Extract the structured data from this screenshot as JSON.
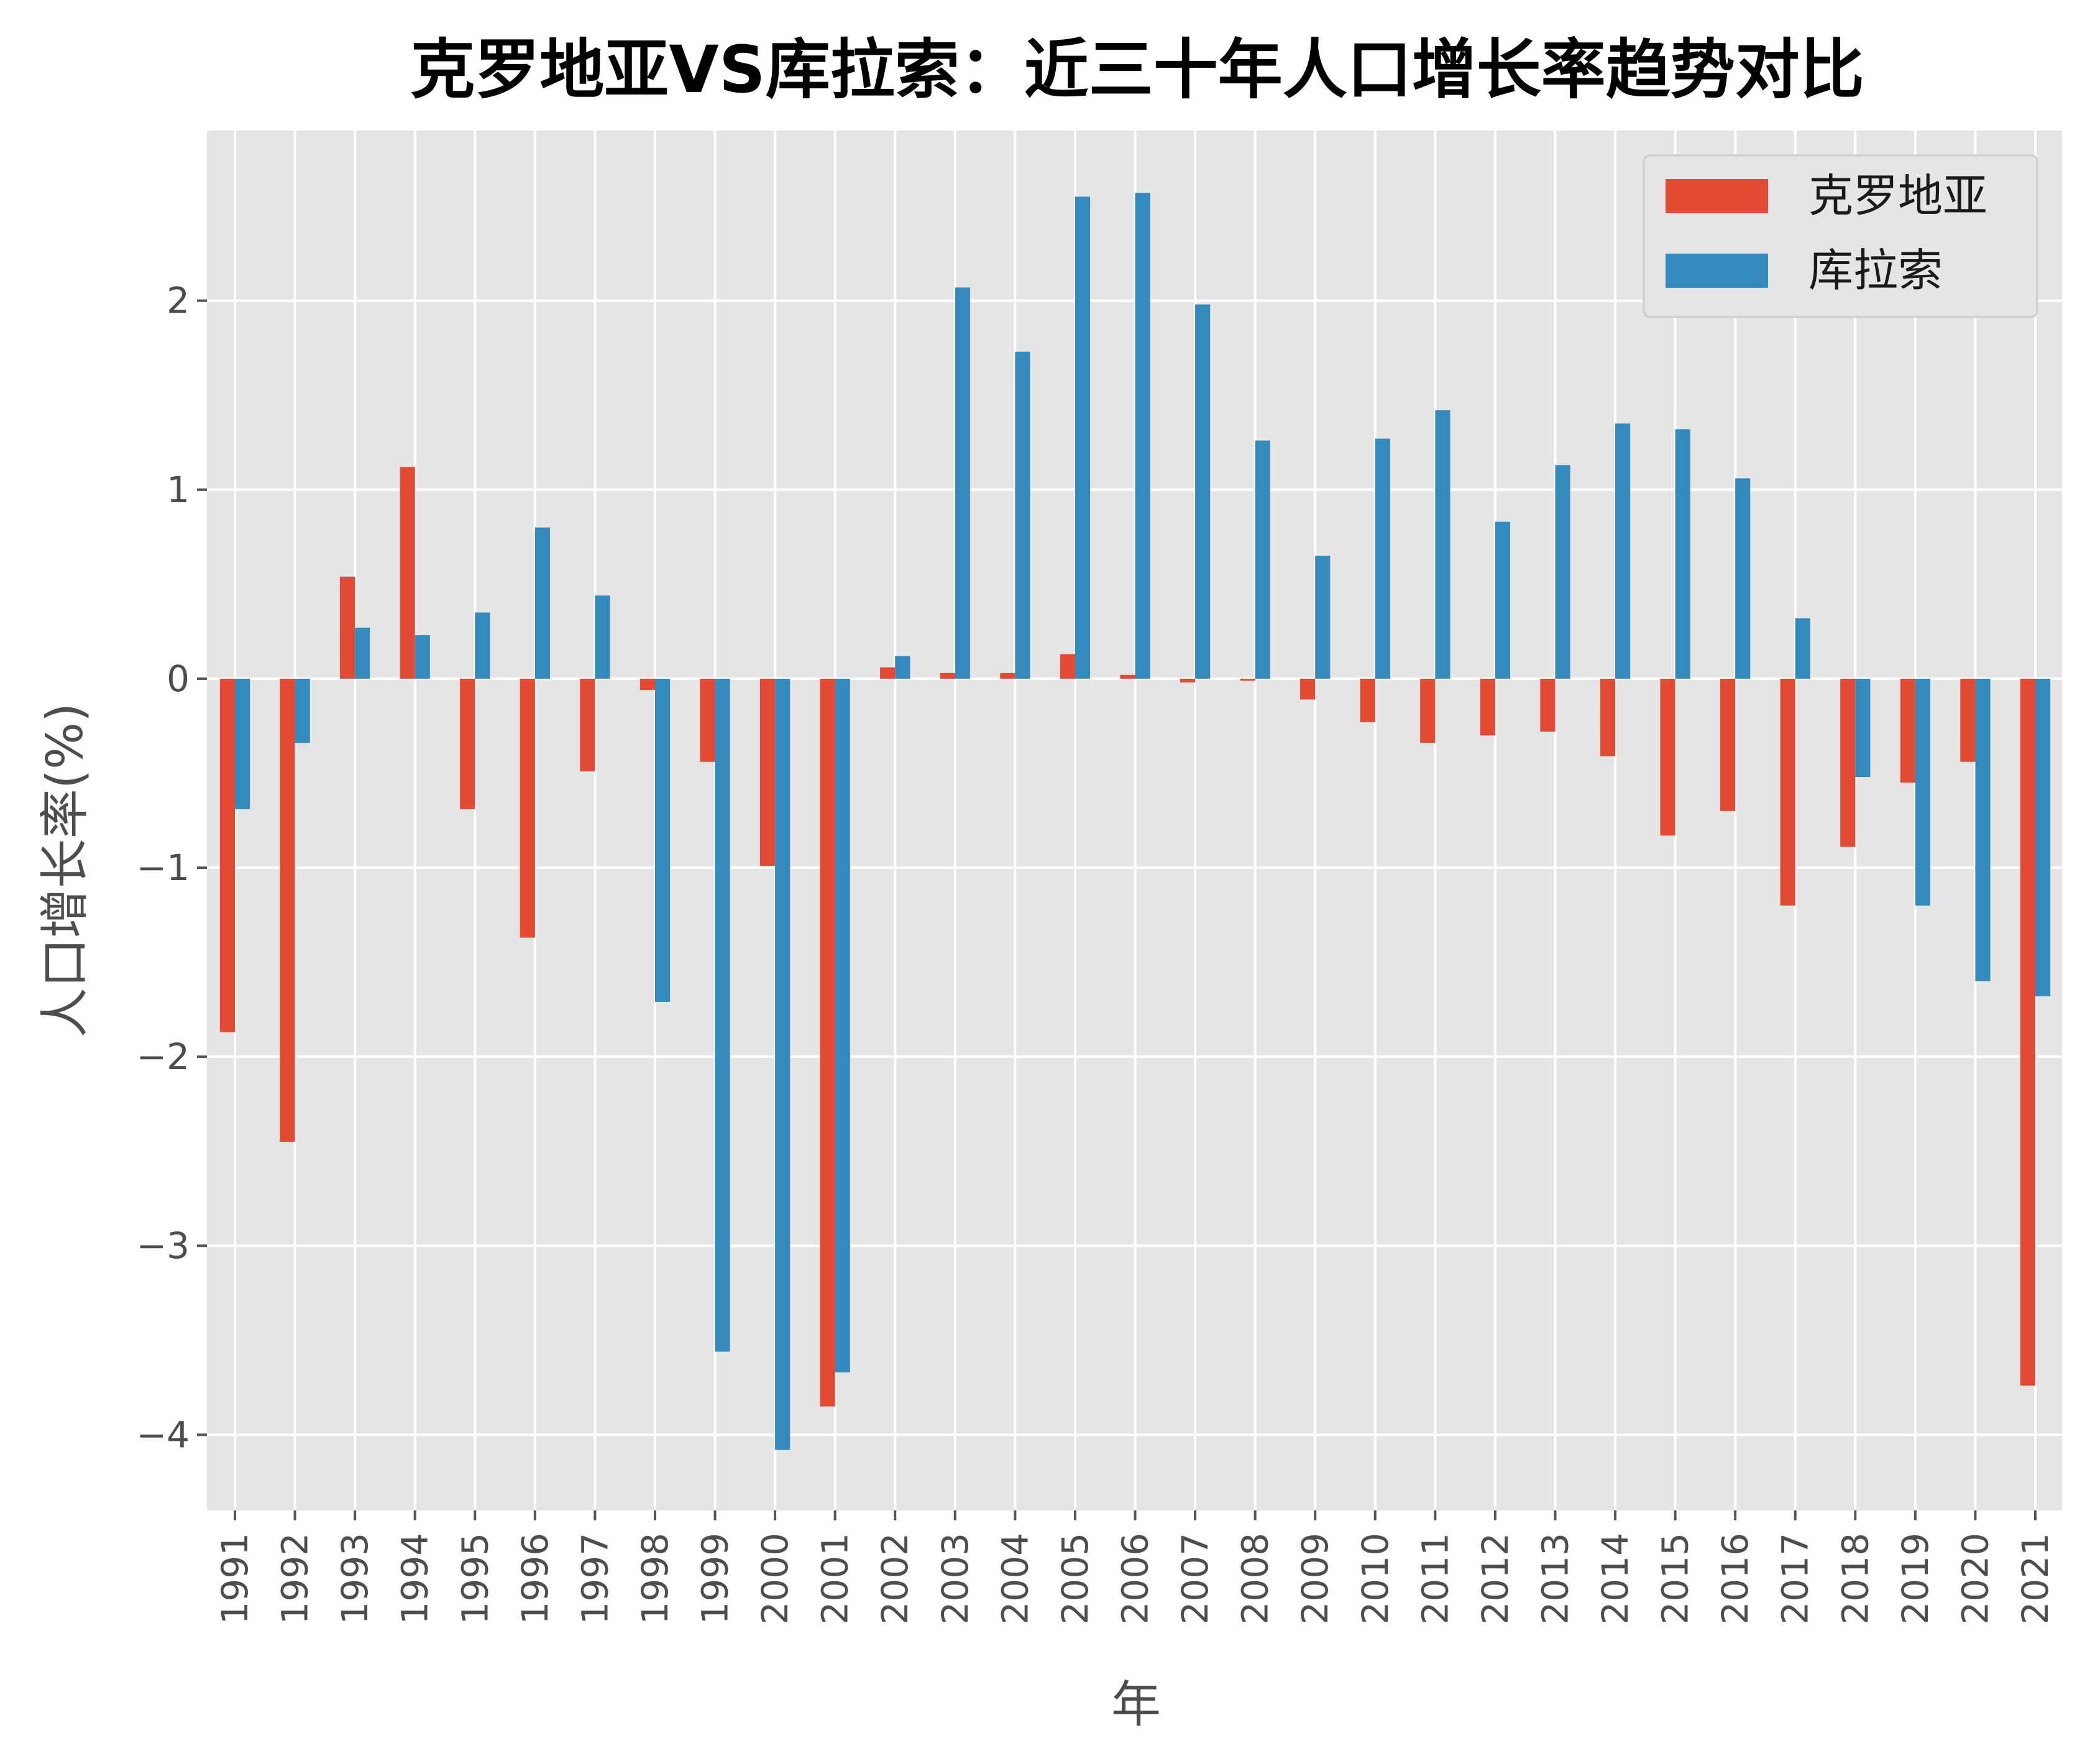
{
  "chart_data": {
    "type": "bar",
    "title": "克罗地亚VS库拉索：近三十年人口增长率趋势对比",
    "xlabel": "年",
    "ylabel": "人口增长率(%)",
    "ylim": [
      -4.4,
      2.9
    ],
    "yticks": [
      2,
      1,
      0,
      -1,
      -2,
      -3,
      -4
    ],
    "ytick_labels": [
      "2",
      "1",
      "0",
      "−1",
      "−2",
      "−3",
      "−4"
    ],
    "grid": true,
    "legend_position": "upper right",
    "categories": [
      "1991",
      "1992",
      "1993",
      "1994",
      "1995",
      "1996",
      "1997",
      "1998",
      "1999",
      "2000",
      "2001",
      "2002",
      "2003",
      "2004",
      "2005",
      "2006",
      "2007",
      "2008",
      "2009",
      "2010",
      "2011",
      "2012",
      "2013",
      "2014",
      "2015",
      "2016",
      "2017",
      "2018",
      "2019",
      "2020",
      "2021"
    ],
    "series": [
      {
        "name": "克罗地亚",
        "color": "#E24A33",
        "values": [
          -1.87,
          -2.45,
          0.54,
          1.12,
          -0.69,
          -1.37,
          -0.49,
          -0.06,
          -0.44,
          -0.99,
          -3.85,
          0.06,
          0.03,
          0.03,
          0.13,
          0.02,
          -0.02,
          -0.01,
          -0.11,
          -0.23,
          -0.34,
          -0.3,
          -0.28,
          -0.41,
          -0.83,
          -0.7,
          -1.2,
          -0.89,
          -0.55,
          -0.44,
          -3.74
        ]
      },
      {
        "name": "库拉索",
        "color": "#348ABD",
        "values": [
          -0.69,
          -0.34,
          0.27,
          0.23,
          0.35,
          0.8,
          0.44,
          -1.71,
          -3.56,
          -4.08,
          -3.67,
          0.12,
          2.07,
          1.73,
          2.55,
          2.57,
          1.98,
          1.26,
          0.65,
          1.27,
          1.42,
          0.83,
          1.13,
          1.35,
          1.32,
          1.06,
          0.32,
          -0.52,
          -1.2,
          -1.6,
          -1.68
        ]
      }
    ]
  },
  "colors": {
    "plot_background": "#E5E5E5",
    "grid": "#FFFFFF",
    "tick_label": "#4D4D4D"
  }
}
